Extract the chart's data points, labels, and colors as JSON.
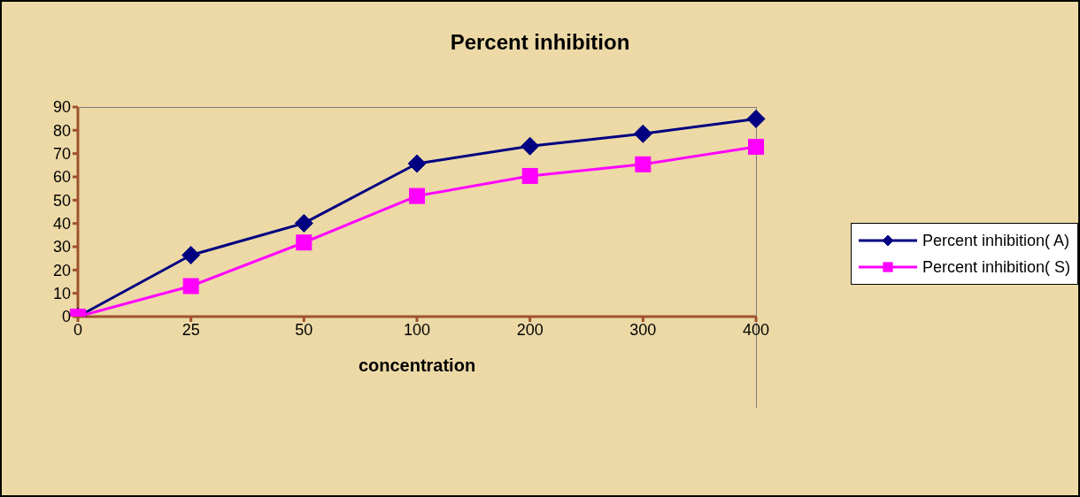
{
  "chart_data": {
    "type": "line",
    "title": "Percent inhibition",
    "xlabel": "concentration",
    "categories": [
      "0",
      "25",
      "50",
      "100",
      "200",
      "300",
      "400"
    ],
    "series": [
      {
        "name": "Percent inhibition( A)",
        "color": "#000080",
        "marker": "diamond",
        "values": [
          0,
          26.4,
          40.1,
          65.7,
          73.2,
          78.5,
          84.9
        ]
      },
      {
        "name": "Percent inhibition( S)",
        "color": "#ff00ff",
        "marker": "square",
        "values": [
          0,
          13.1,
          31.8,
          51.8,
          60.4,
          65.4,
          72.9
        ]
      }
    ],
    "ylim": [
      0,
      90
    ],
    "yticks": [
      0,
      10,
      20,
      30,
      40,
      50,
      60,
      70,
      80,
      90
    ],
    "grid": false,
    "legend": "right",
    "line_style": "solid"
  }
}
